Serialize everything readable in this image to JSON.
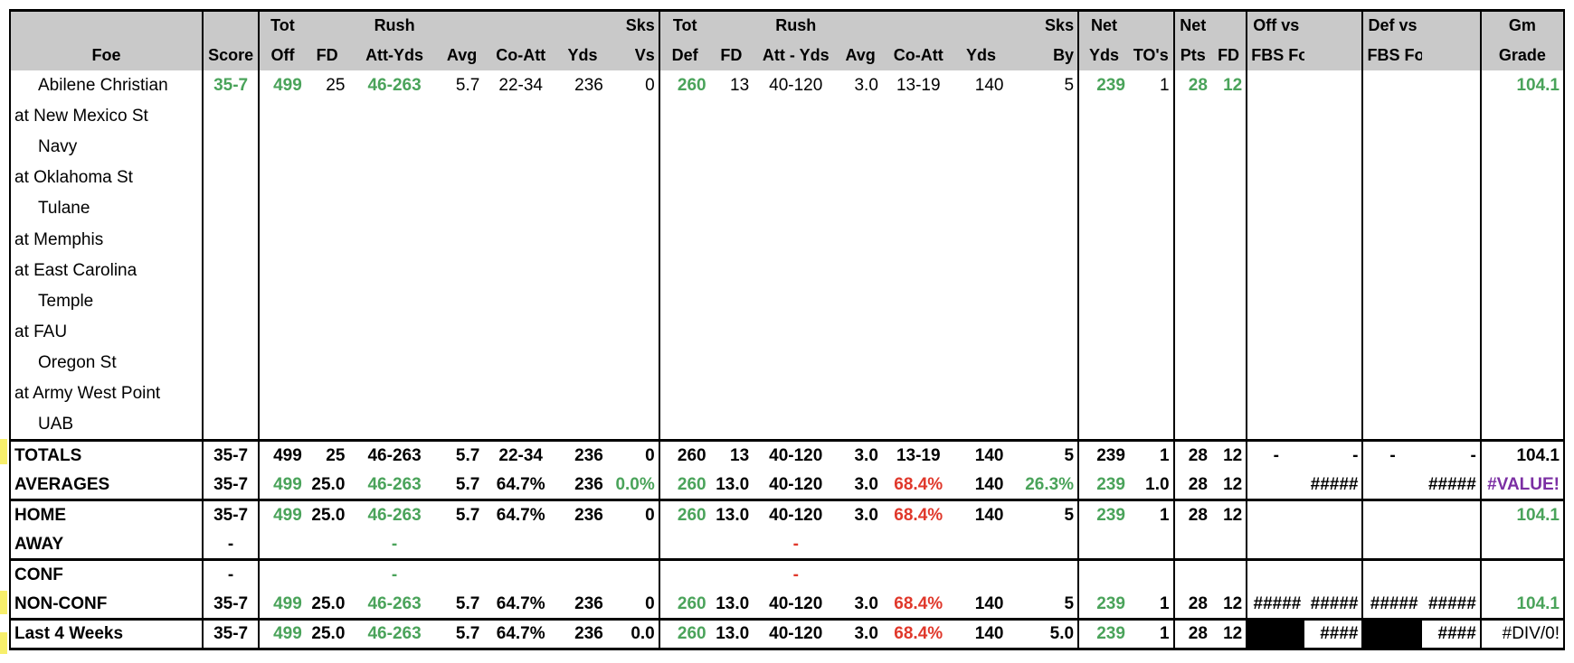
{
  "header": {
    "row1": [
      "",
      "",
      "Tot",
      "",
      "Rush",
      "",
      "",
      "",
      "Sks",
      "Tot",
      "",
      "Rush",
      "",
      "",
      "",
      "Sks",
      "Net",
      "",
      "Net",
      "",
      "Off vs",
      "",
      "Def vs",
      "",
      "Gm"
    ],
    "row2": [
      "Foe",
      "Score",
      "Off",
      "FD",
      "Att-Yds",
      "Avg",
      "Co-Att",
      "Yds",
      "Vs",
      "Def",
      "FD",
      "Att - Yds",
      "Avg",
      "Co-Att",
      "Yds",
      "By",
      "Yds",
      "TO's",
      "Pts",
      "FD",
      "FBS Foe Def",
      "",
      "FBS Foe Off",
      "",
      "Grade"
    ]
  },
  "games": [
    {
      "foe": "Abilene Christian",
      "home": true,
      "score": "35-7",
      "tot_off": "499",
      "fd": "25",
      "rush": "46-263",
      "avg": "5.7",
      "co_att": "22-34",
      "yds": "236",
      "sks_vs": "0",
      "tot_def": "260",
      "d_fd": "13",
      "d_rush": "40-120",
      "d_avg": "3.0",
      "d_co_att": "13-19",
      "d_yds": "140",
      "sks_by": "5",
      "net_yds": "239",
      "tos": "1",
      "net_pts": "28",
      "net_fd": "12",
      "grade": "104.1"
    },
    {
      "foe": "at New Mexico St",
      "home": false
    },
    {
      "foe": "Navy",
      "home": true
    },
    {
      "foe": "at Oklahoma St",
      "home": false
    },
    {
      "foe": "Tulane",
      "home": true
    },
    {
      "foe": "at Memphis",
      "home": false
    },
    {
      "foe": "at East Carolina",
      "home": false
    },
    {
      "foe": "Temple",
      "home": true
    },
    {
      "foe": "at FAU",
      "home": false
    },
    {
      "foe": "Oregon St",
      "home": true
    },
    {
      "foe": "at Army West Point",
      "home": false
    },
    {
      "foe": "UAB",
      "home": true
    }
  ],
  "totals": {
    "label": "TOTALS",
    "score": "35-7",
    "tot_off": "499",
    "fd": "25",
    "rush": "46-263",
    "avg": "5.7",
    "co_att": "22-34",
    "yds": "236",
    "sks_vs": "0",
    "tot_def": "260",
    "d_fd": "13",
    "d_rush": "40-120",
    "d_avg": "3.0",
    "d_co_att": "13-19",
    "d_yds": "140",
    "sks_by": "5",
    "net_yds": "239",
    "tos": "1",
    "net_pts": "28",
    "net_fd": "12",
    "off1": "-",
    "off2": "-",
    "def1": "-",
    "def2": "-",
    "grade": "104.1"
  },
  "averages": {
    "label": "AVERAGES",
    "score": "35-7",
    "tot_off": "499",
    "fd": "25.0",
    "rush": "46-263",
    "avg": "5.7",
    "co_att": "64.7%",
    "yds": "236",
    "sks_vs": "0.0%",
    "tot_def": "260",
    "d_fd": "13.0",
    "d_rush": "40-120",
    "d_avg": "3.0",
    "d_co_att": "68.4%",
    "d_yds": "140",
    "sks_by": "26.3%",
    "net_yds": "239",
    "tos": "1.0",
    "net_pts": "28",
    "net_fd": "12",
    "off2": "#####",
    "def2": "#####",
    "grade": "#VALUE!"
  },
  "home": {
    "label": "HOME",
    "score": "35-7",
    "tot_off": "499",
    "fd": "25.0",
    "rush": "46-263",
    "avg": "5.7",
    "co_att": "64.7%",
    "yds": "236",
    "sks_vs": "0",
    "tot_def": "260",
    "d_fd": "13.0",
    "d_rush": "40-120",
    "d_avg": "3.0",
    "d_co_att": "68.4%",
    "d_yds": "140",
    "sks_by": "5",
    "net_yds": "239",
    "tos": "1",
    "net_pts": "28",
    "net_fd": "12",
    "grade": "104.1"
  },
  "away": {
    "label": "AWAY",
    "score": "-",
    "rush": "-",
    "d_rush": "-"
  },
  "conf": {
    "label": "CONF",
    "score": "-",
    "rush": "-",
    "d_rush": "-"
  },
  "nonconf": {
    "label": "NON-CONF",
    "score": "35-7",
    "tot_off": "499",
    "fd": "25.0",
    "rush": "46-263",
    "avg": "5.7",
    "co_att": "64.7%",
    "yds": "236",
    "sks_vs": "0",
    "tot_def": "260",
    "d_fd": "13.0",
    "d_rush": "40-120",
    "d_avg": "3.0",
    "d_co_att": "68.4%",
    "d_yds": "140",
    "sks_by": "5",
    "net_yds": "239",
    "tos": "1",
    "net_pts": "28",
    "net_fd": "12",
    "off1": "#####",
    "off2": "#####",
    "def1": "#####",
    "def2": "#####",
    "grade": "104.1"
  },
  "last4": {
    "label": "Last 4 Weeks",
    "score": "35-7",
    "tot_off": "499",
    "fd": "25.0",
    "rush": "46-263",
    "avg": "5.7",
    "co_att": "64.7%",
    "yds": "236",
    "sks_vs": "0.0",
    "tot_def": "260",
    "d_fd": "13.0",
    "d_rush": "40-120",
    "d_avg": "3.0",
    "d_co_att": "68.4%",
    "d_yds": "140",
    "sks_by": "5.0",
    "net_yds": "239",
    "tos": "1",
    "net_pts": "28",
    "net_fd": "12",
    "off2": "####",
    "def2": "####",
    "grade": "#DIV/0!"
  },
  "colors": {
    "green": "#4aa35a",
    "red": "#e0382b",
    "purple": "#7b2fa3",
    "header_bg": "#c9c9c9",
    "highlight": "#f7ef6b"
  }
}
